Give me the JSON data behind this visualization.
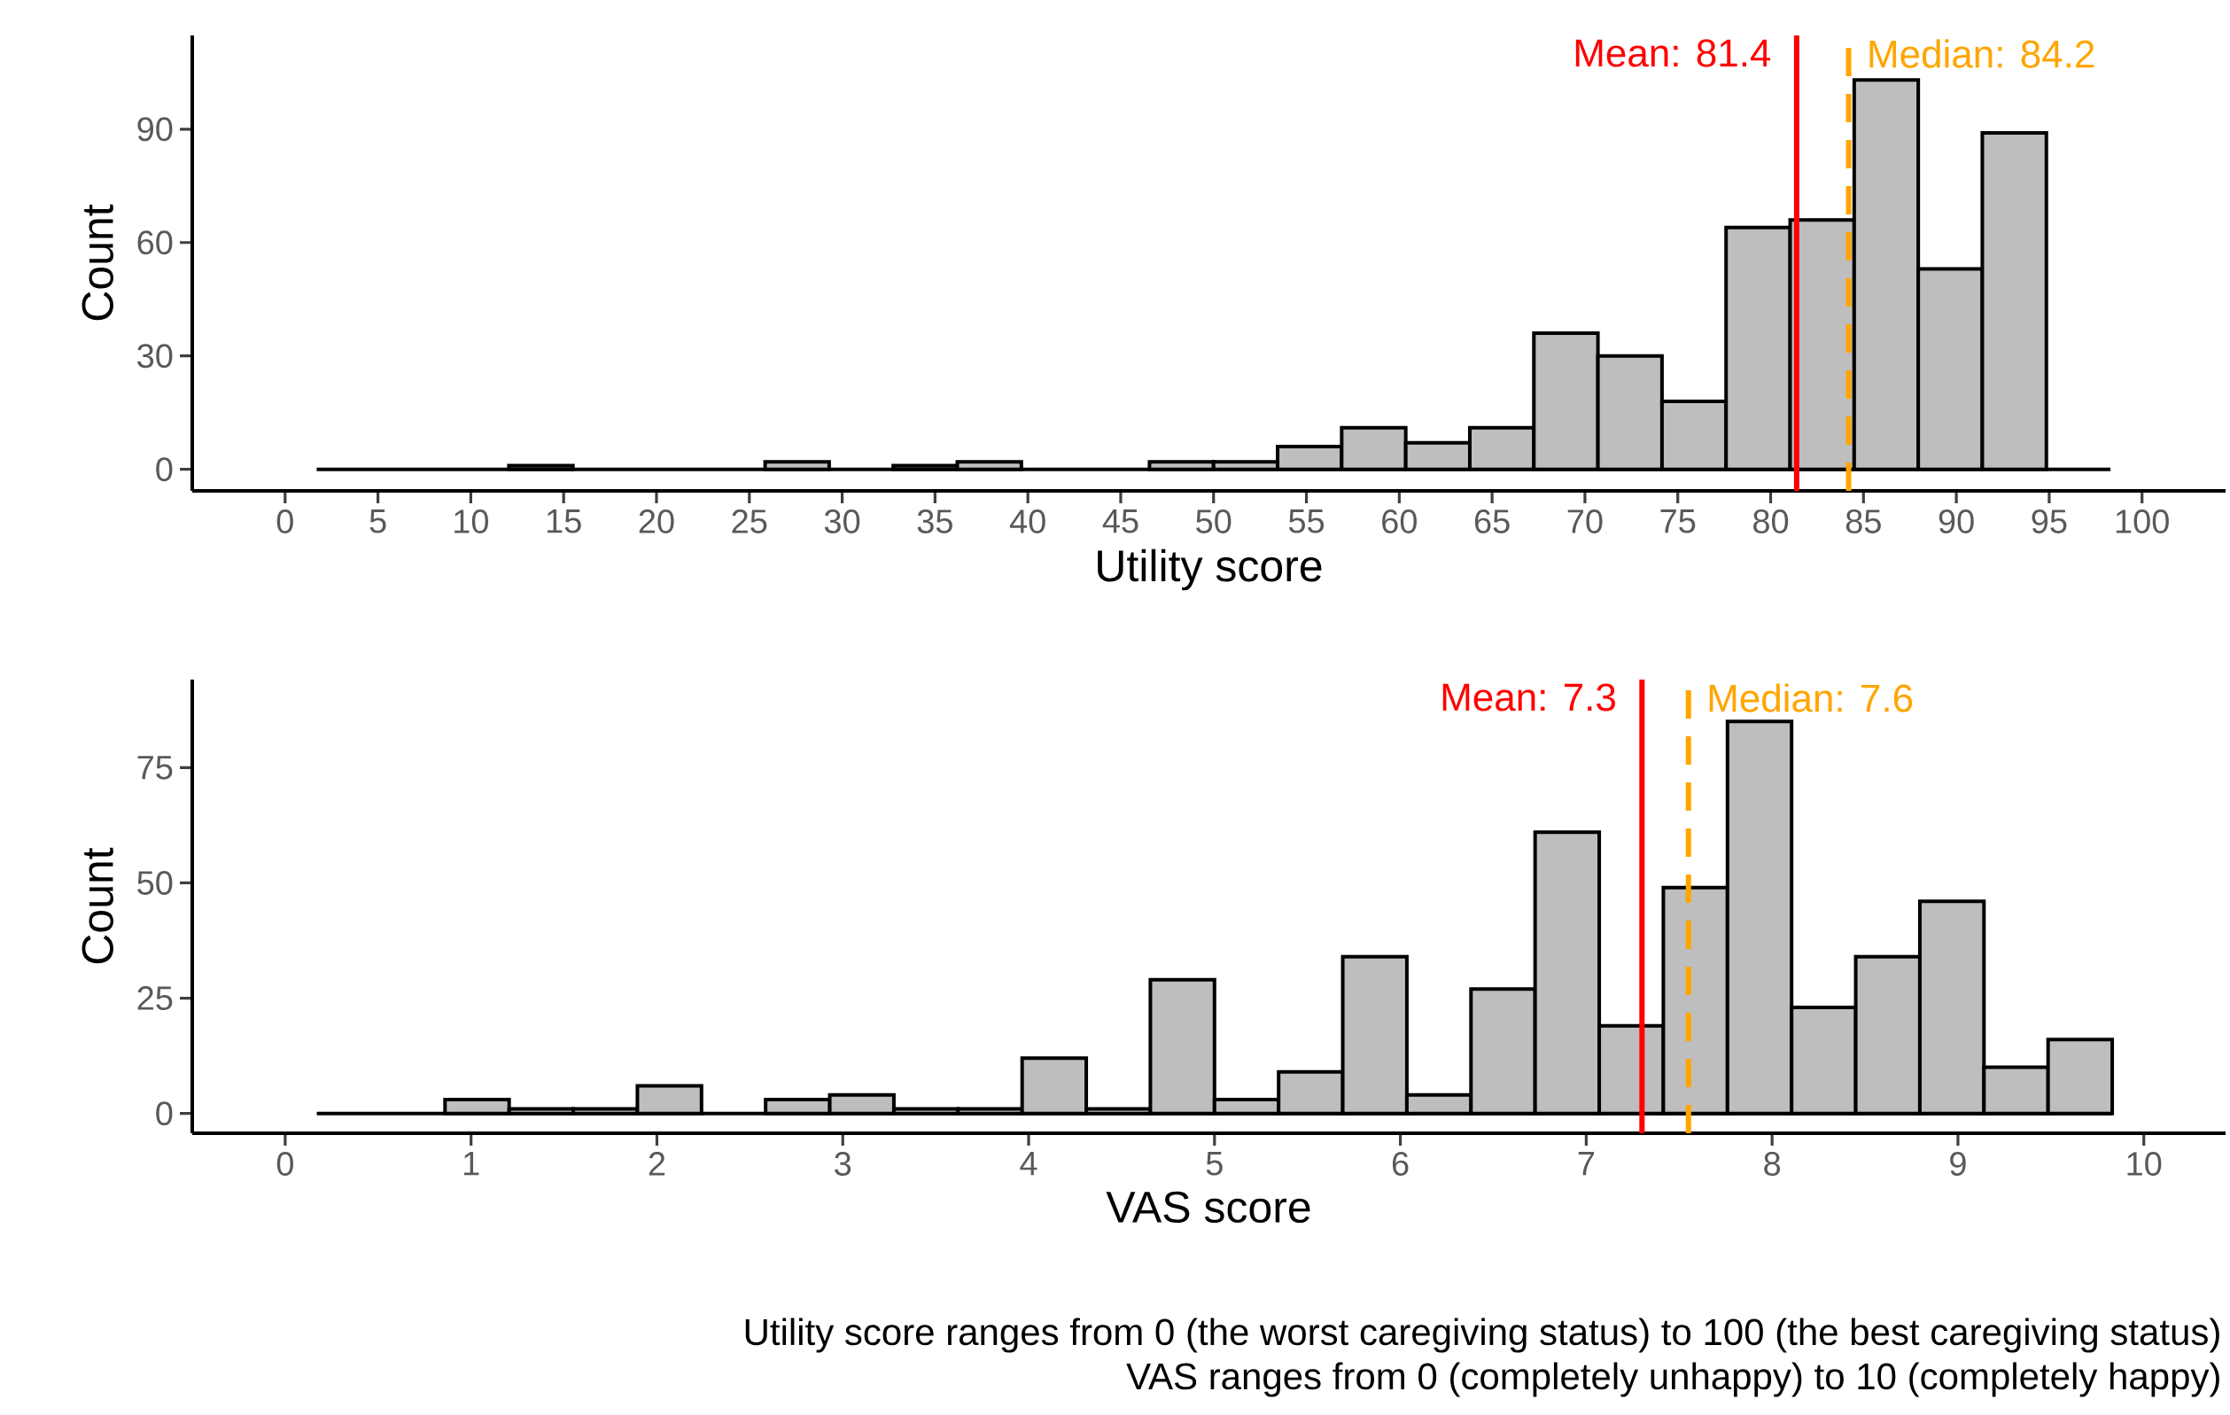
{
  "chart_data": [
    {
      "type": "histogram",
      "xlabel": "Utility score",
      "ylabel": "Count",
      "color": "#bebebe",
      "bins": [
        1.7,
        5.15,
        8.6,
        12.05,
        15.5,
        18.95,
        22.4,
        25.85,
        29.3,
        32.75,
        36.2,
        39.65,
        43.1,
        46.55,
        50.0,
        53.45,
        56.9,
        60.35,
        63.8,
        67.25,
        70.7,
        74.15,
        77.6,
        81.05,
        84.5,
        87.95,
        91.4,
        94.85,
        98.3
      ],
      "values": [
        0,
        0,
        0,
        1,
        0,
        0,
        0,
        2,
        0,
        1,
        2,
        0,
        0,
        2,
        2,
        6,
        11,
        7,
        11,
        36,
        30,
        18,
        64,
        66,
        103,
        53,
        89,
        0
      ],
      "xlim": [
        -5,
        104.5
      ],
      "ylim": [
        -5.7,
        114.8
      ],
      "xticks": [
        0,
        5,
        10,
        15,
        20,
        25,
        30,
        35,
        40,
        45,
        50,
        55,
        60,
        65,
        70,
        75,
        80,
        85,
        90,
        95,
        100
      ],
      "yticks": [
        0,
        30,
        60,
        90
      ],
      "ref_lines": [
        {
          "axis": "x",
          "value": 81.4,
          "label": "Mean: 81.4",
          "color": "#ff0000",
          "line_style": "solid"
        },
        {
          "axis": "x",
          "value": 84.2,
          "label": "Median: 84.2",
          "color": "#ffa500",
          "line_style": "dashed"
        }
      ]
    },
    {
      "type": "histogram",
      "xlabel": "VAS score",
      "ylabel": "Count",
      "color": "#bebebe",
      "bins": [
        0.17,
        0.515,
        0.86,
        1.205,
        1.55,
        1.895,
        2.24,
        2.585,
        2.93,
        3.275,
        3.62,
        3.965,
        4.31,
        4.655,
        5.0,
        5.345,
        5.69,
        6.035,
        6.38,
        6.725,
        7.07,
        7.415,
        7.76,
        8.105,
        8.45,
        8.795,
        9.14,
        9.485,
        9.83
      ],
      "values": [
        0,
        0,
        3,
        1,
        1,
        6,
        0,
        3,
        4,
        1,
        1,
        12,
        1,
        29,
        3,
        9,
        34,
        4,
        27,
        61,
        19,
        49,
        85,
        23,
        34,
        46,
        10,
        16
      ],
      "xlim": [
        -0.5,
        10.44
      ],
      "ylim": [
        -4.3,
        94.1
      ],
      "xticks": [
        0,
        1,
        2,
        3,
        4,
        5,
        6,
        7,
        8,
        9,
        10
      ],
      "yticks": [
        0,
        25,
        50,
        75
      ],
      "ref_lines": [
        {
          "axis": "x",
          "value": 7.3,
          "label": "Mean: 7.3",
          "color": "#ff0000",
          "line_style": "solid"
        },
        {
          "axis": "x",
          "value": 7.55,
          "label": "Median: 7.6",
          "color": "#ffa500",
          "line_style": "dashed"
        }
      ],
      "annotations": [
        "Utility score ranges from 0 (the worst caregiving status) to 100 (the best caregiving status)",
        "VAS ranges from 0 (completely unhappy) to 10 (completely happy)"
      ]
    }
  ]
}
